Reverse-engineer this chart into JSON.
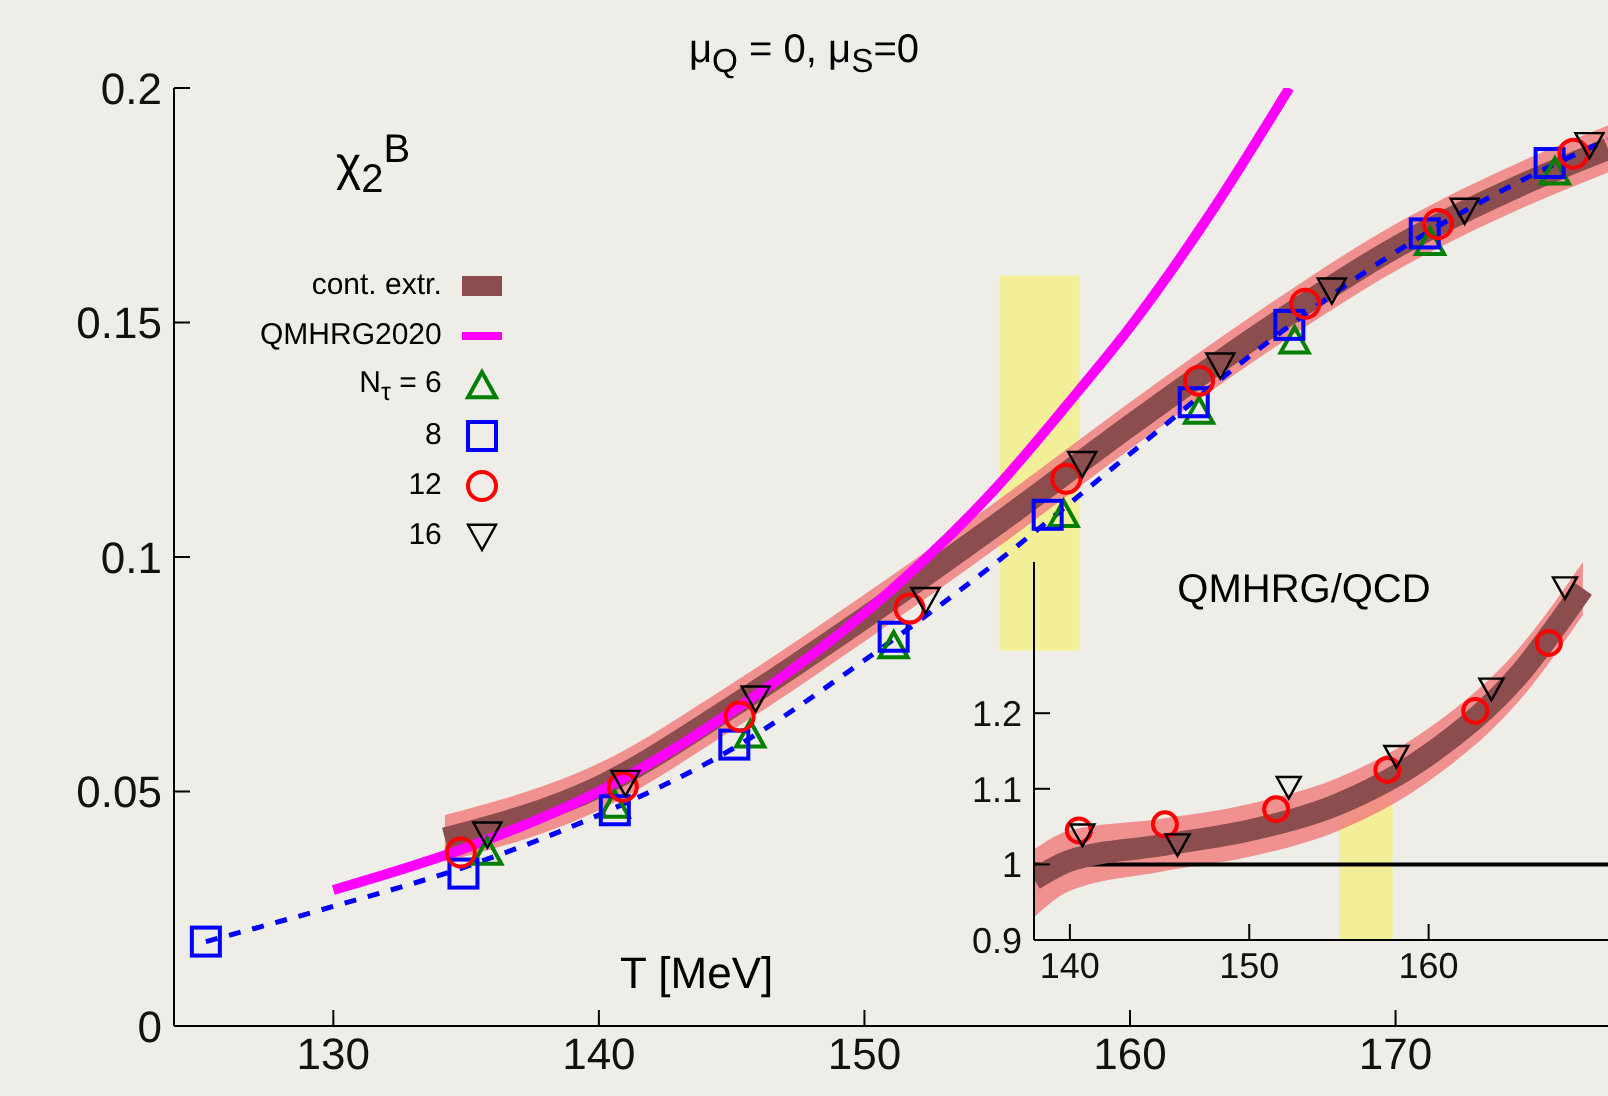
{
  "chart_data": [
    {
      "type": "scatter",
      "title": "μ$_{Q}$ = 0, μ$_{S}$=0",
      "xlabel": "T [MeV]",
      "ylabel": "χ$_{2}$$^{B}$",
      "xlim": [
        124,
        178
      ],
      "xticks": [
        130,
        140,
        150,
        160,
        170
      ],
      "ylim": [
        0,
        0.2
      ],
      "yticks": [
        0,
        0.05,
        0.1,
        0.15,
        0.2
      ],
      "grid": false,
      "legend": "top left",
      "bands": [
        {
          "axis": "x",
          "from": 155.1,
          "to": 158.1,
          "color": "#f3ef8a"
        }
      ],
      "series": [
        {
          "name": "cont. extr.",
          "type": "line",
          "line_style": "solid",
          "color": "#8b4d4d",
          "x": [
            134.2,
            140,
            145,
            150,
            155,
            160,
            165,
            170,
            175,
            178
          ],
          "values": [
            0.04,
            0.051,
            0.068,
            0.087,
            0.107,
            0.128,
            0.148,
            0.166,
            0.18,
            0.187
          ],
          "lower": [
            0.035,
            0.046,
            0.063,
            0.082,
            0.102,
            0.123,
            0.143,
            0.161,
            0.175,
            0.182
          ],
          "upper": [
            0.045,
            0.056,
            0.073,
            0.092,
            0.112,
            0.133,
            0.153,
            0.171,
            0.185,
            0.192
          ]
        },
        {
          "name": "QMHRG2020",
          "type": "line",
          "color": "#ff00ff",
          "line_style": "solid",
          "x": [
            130,
            135,
            140,
            145,
            150,
            155,
            158,
            160,
            163,
            166
          ],
          "values": [
            0.029,
            0.038,
            0.05,
            0.067,
            0.088,
            0.115,
            0.135,
            0.149,
            0.173,
            0.2
          ]
        },
        {
          "type": "line",
          "color": "#0000ff",
          "line_style": "dashed",
          "x": [
            125.2,
            130,
            135,
            140,
            145,
            150,
            155,
            160,
            165,
            170,
            175,
            178
          ],
          "values": [
            0.018,
            0.0255,
            0.034,
            0.045,
            0.059,
            0.078,
            0.099,
            0.122,
            0.145,
            0.165,
            0.181,
            0.189
          ]
        },
        {
          "name": "N$_{τ}$ = 6",
          "marker": "triangle",
          "color": "#008000",
          "x": [
            135.8,
            140.6,
            145.7,
            151.1,
            157.5,
            162.6,
            166.2,
            171.3,
            176
          ],
          "values": [
            0.037,
            0.047,
            0.062,
            0.081,
            0.109,
            0.131,
            0.146,
            0.167,
            0.182
          ]
        },
        {
          "name": "8",
          "marker": "square",
          "color": "#0000ff",
          "x": [
            125.2,
            134.9,
            140.6,
            145.1,
            151.1,
            156.9,
            162.4,
            166,
            171.1,
            175.8
          ],
          "values": [
            0.018,
            0.0325,
            0.046,
            0.06,
            0.083,
            0.109,
            0.133,
            0.1495,
            0.169,
            0.184
          ]
        },
        {
          "name": "12",
          "marker": "circle",
          "color": "#ff0000",
          "x": [
            134.8,
            140.9,
            145.3,
            151.7,
            157.6,
            162.6,
            166.6,
            171.6,
            176.7
          ],
          "values": [
            0.037,
            0.051,
            0.066,
            0.089,
            0.1167,
            0.1376,
            0.154,
            0.171,
            0.186
          ]
        },
        {
          "name": "16",
          "marker": "triangle-down",
          "color": "#000000",
          "x": [
            135.8,
            141,
            145.9,
            152.3,
            158.2,
            163.4,
            167.6,
            172.6,
            177.3
          ],
          "values": [
            0.041,
            0.052,
            0.07,
            0.091,
            0.12,
            0.141,
            0.157,
            0.174,
            0.188
          ]
        }
      ]
    },
    {
      "type": "scatter",
      "title": "QMHRG/QCD",
      "xlim": [
        138,
        170
      ],
      "xticks": [
        140,
        150,
        160
      ],
      "ylim": [
        0.9,
        1.4
      ],
      "yticks": [
        0.9,
        1,
        1.1,
        1.2
      ],
      "grid": false,
      "ref_lines": [
        {
          "axis": "y",
          "value": 1,
          "color": "#000000"
        }
      ],
      "bands": [
        {
          "axis": "x",
          "from": 155,
          "to": 158,
          "color": "#f3ef8a"
        }
      ],
      "series": [
        {
          "type": "line",
          "line_style": "solid",
          "color": "#8b4d4d",
          "x": [
            138,
            140,
            145,
            150,
            155,
            160,
            165,
            168.6
          ],
          "values": [
            0.98,
            1.005,
            1.025,
            1.045,
            1.08,
            1.145,
            1.25,
            1.365
          ],
          "lower": [
            0.93,
            0.965,
            0.99,
            1.01,
            1.045,
            1.11,
            1.215,
            1.33
          ],
          "upper": [
            1.02,
            1.045,
            1.06,
            1.08,
            1.115,
            1.18,
            1.285,
            1.4
          ]
        },
        {
          "marker": "circle",
          "color": "#ff0000",
          "x": [
            140.5,
            145.3,
            151.5,
            157.7,
            162.6,
            166.7
          ],
          "values": [
            1.045,
            1.053,
            1.073,
            1.125,
            1.203,
            1.293
          ]
        },
        {
          "marker": "triangle-down",
          "color": "#000000",
          "x": [
            140.7,
            146,
            152.2,
            158.2,
            163.5,
            167.6
          ],
          "values": [
            1.04,
            1.027,
            1.103,
            1.144,
            1.233,
            1.367
          ]
        }
      ]
    }
  ]
}
